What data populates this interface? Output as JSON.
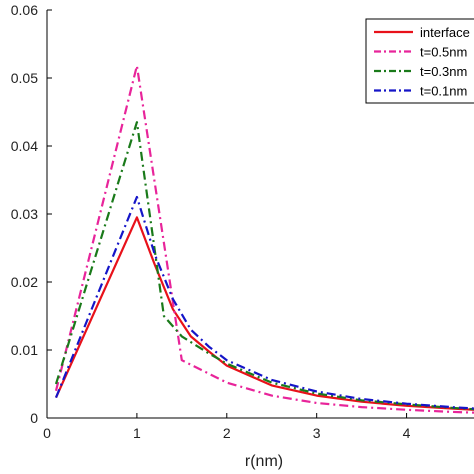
{
  "chart_data": {
    "type": "line",
    "xlabel": "r(nm)",
    "ylabel": "",
    "xlim": [
      0,
      4.75
    ],
    "ylim": [
      0,
      0.06
    ],
    "xticks": [
      0,
      1,
      2,
      3,
      4
    ],
    "xtick_labels": [
      "0",
      "1",
      "2",
      "3",
      "4"
    ],
    "yticks": [
      0,
      0.01,
      0.02,
      0.03,
      0.04,
      0.05,
      0.06
    ],
    "ytick_labels": [
      "0",
      "0.01",
      "0.02",
      "0.03",
      "0.04",
      "0.05",
      "0.06"
    ],
    "grid": false,
    "legend_position": "top-right",
    "series": [
      {
        "name": "interface",
        "color": "#e8111a",
        "dash": "solid",
        "points": [
          [
            0.1,
            0.003
          ],
          [
            1.0,
            0.0295
          ],
          [
            1.2,
            0.0225
          ],
          [
            1.4,
            0.016
          ],
          [
            1.6,
            0.012
          ],
          [
            1.8,
            0.0098
          ],
          [
            2.0,
            0.0077
          ],
          [
            2.5,
            0.0048
          ],
          [
            3.0,
            0.0033
          ],
          [
            3.5,
            0.0024
          ],
          [
            4.0,
            0.0018
          ],
          [
            4.5,
            0.0014
          ],
          [
            4.75,
            0.0012
          ]
        ]
      },
      {
        "name": "t=0.5nm",
        "color": "#e8249a",
        "dash": "dash-dot",
        "points": [
          [
            0.1,
            0.004
          ],
          [
            1.0,
            0.0518
          ],
          [
            1.5,
            0.0085
          ],
          [
            2.0,
            0.0052
          ],
          [
            2.5,
            0.0033
          ],
          [
            3.0,
            0.0022
          ],
          [
            3.5,
            0.0016
          ],
          [
            4.0,
            0.0012
          ],
          [
            4.5,
            0.0009
          ],
          [
            4.75,
            0.0008
          ]
        ]
      },
      {
        "name": "t=0.3nm",
        "color": "#1a7a1a",
        "dash": "dash-dot",
        "points": [
          [
            0.1,
            0.005
          ],
          [
            1.0,
            0.0435
          ],
          [
            1.3,
            0.015
          ],
          [
            1.5,
            0.012
          ],
          [
            1.8,
            0.0095
          ],
          [
            2.0,
            0.008
          ],
          [
            2.5,
            0.0052
          ],
          [
            3.0,
            0.0036
          ],
          [
            3.5,
            0.0026
          ],
          [
            4.0,
            0.002
          ],
          [
            4.5,
            0.0015
          ],
          [
            4.75,
            0.0013
          ]
        ]
      },
      {
        "name": "t=0.1nm",
        "color": "#1515c8",
        "dash": "dash-dot",
        "points": [
          [
            0.1,
            0.003
          ],
          [
            1.0,
            0.0325
          ],
          [
            1.2,
            0.024
          ],
          [
            1.4,
            0.0175
          ],
          [
            1.6,
            0.013
          ],
          [
            1.8,
            0.0105
          ],
          [
            2.0,
            0.0085
          ],
          [
            2.5,
            0.0056
          ],
          [
            3.0,
            0.0039
          ],
          [
            3.5,
            0.0028
          ],
          [
            4.0,
            0.0021
          ],
          [
            4.5,
            0.0016
          ],
          [
            4.75,
            0.0014
          ]
        ]
      }
    ],
    "legend": [
      "interface",
      "t=0.5nm",
      "t=0.3nm",
      "t=0.1nm"
    ]
  }
}
